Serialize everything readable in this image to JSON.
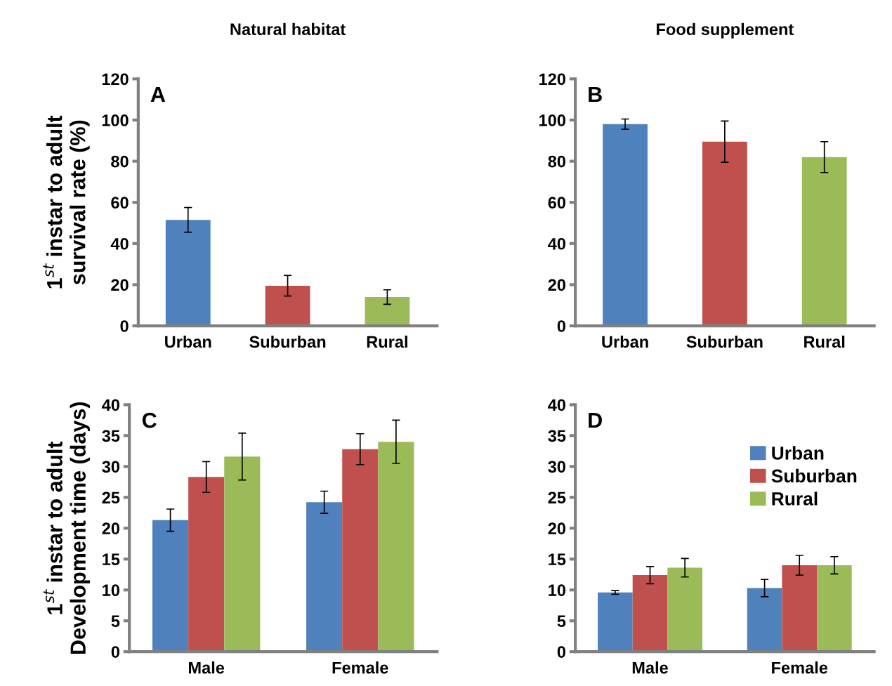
{
  "chart_data": [
    {
      "type": "bar",
      "title": "Natural habitat",
      "ylabel": "1$^{st}$ instar to adult\nsurvival rate (%)",
      "annotations": [
        "A"
      ],
      "categories": [
        "Urban",
        "Suburban",
        "Rural"
      ],
      "values": [
        51.5,
        19.5,
        14
      ],
      "errors": [
        6,
        5,
        3.5
      ],
      "colors": [
        "#4f81bd",
        "#c0504d",
        "#9bbb59"
      ],
      "ylim": [
        0,
        120
      ],
      "yticks": [
        0,
        20,
        40,
        60,
        80,
        100,
        120
      ],
      "grid": false,
      "legend": false
    },
    {
      "type": "bar",
      "title": "Food supplement",
      "annotations": [
        "B"
      ],
      "categories": [
        "Urban",
        "Suburban",
        "Rural"
      ],
      "values": [
        98,
        89.5,
        82
      ],
      "errors": [
        2.5,
        10,
        7.5
      ],
      "colors": [
        "#4f81bd",
        "#c0504d",
        "#9bbb59"
      ],
      "ylim": [
        0,
        120
      ],
      "yticks": [
        0,
        20,
        40,
        60,
        80,
        100,
        120
      ],
      "grid": false,
      "legend": false
    },
    {
      "type": "bar",
      "ylabel": "1$^{st}$ instar to adult\nDevelopment time (days)",
      "annotations": [
        "C"
      ],
      "categories": [
        "Male",
        "Female"
      ],
      "series": [
        {
          "color": "#4f81bd",
          "values": [
            21.3,
            24.2
          ],
          "errors": [
            1.8,
            1.8
          ]
        },
        {
          "color": "#c0504d",
          "values": [
            28.3,
            32.8
          ],
          "errors": [
            2.5,
            2.5
          ]
        },
        {
          "color": "#9bbb59",
          "values": [
            31.6,
            34
          ],
          "errors": [
            3.8,
            3.5
          ]
        }
      ],
      "ylim": [
        0,
        40
      ],
      "yticks": [
        0,
        5,
        10,
        15,
        20,
        25,
        30,
        35,
        40
      ],
      "grid": false,
      "legend": false
    },
    {
      "type": "bar",
      "annotations": [
        "D"
      ],
      "categories": [
        "Male",
        "Female"
      ],
      "series": [
        {
          "name": "Urban",
          "color": "#4f81bd",
          "values": [
            9.6,
            10.3
          ],
          "errors": [
            0.3,
            1.4
          ]
        },
        {
          "name": "Suburban",
          "color": "#c0504d",
          "values": [
            12.4,
            14
          ],
          "errors": [
            1.4,
            1.6
          ]
        },
        {
          "name": "Rural",
          "color": "#9bbb59",
          "values": [
            13.6,
            14
          ],
          "errors": [
            1.5,
            1.4
          ]
        }
      ],
      "ylim": [
        0,
        40
      ],
      "yticks": [
        0,
        5,
        10,
        15,
        20,
        25,
        30,
        35,
        40
      ],
      "grid": false,
      "legend": "top right"
    }
  ]
}
